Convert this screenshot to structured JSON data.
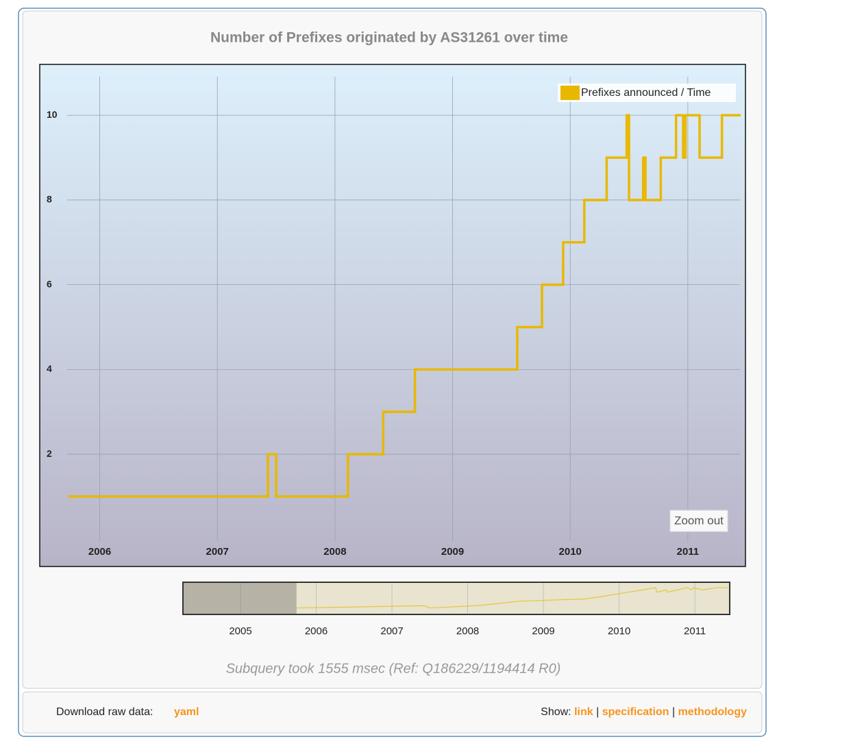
{
  "chart_data": {
    "type": "line",
    "step": "post",
    "title": "Number of Prefixes originated by AS31261 over time",
    "series": [
      {
        "name": "Prefixes announced / Time",
        "color": "#e8b800",
        "x": [
          2005.74,
          2007.43,
          2007.5,
          2008.11,
          2008.41,
          2008.68,
          2009.55,
          2009.76,
          2009.94,
          2010.12,
          2010.31,
          2010.48,
          2010.5,
          2010.62,
          2010.64,
          2010.77,
          2010.9,
          2010.96,
          2010.98,
          2011.1,
          2011.29,
          2011.44
        ],
        "values": [
          1,
          2,
          1,
          2,
          3,
          4,
          5,
          6,
          7,
          8,
          9,
          10,
          8,
          9,
          8,
          9,
          10,
          9,
          10,
          9,
          10,
          10
        ]
      }
    ],
    "xlim": [
      2005.49,
      2011.49
    ],
    "xticks": [
      2006,
      2007,
      2008,
      2009,
      2010,
      2011
    ],
    "ylim": [
      -0.65,
      11.2
    ],
    "yticks": [
      2,
      4,
      6,
      8,
      10
    ],
    "grid": true,
    "legend": "top-right"
  },
  "navigator": {
    "xlim": [
      2004.24,
      2011.46
    ],
    "xticks": [
      2005,
      2006,
      2007,
      2008,
      2009,
      2010,
      2011
    ]
  },
  "zoom_button": "Zoom out",
  "subquery_note": "Subquery took 1555 msec (Ref: Q186229/1194414 R0)",
  "footer": {
    "download_label": "Download raw data:",
    "download_link": "yaml",
    "show_label": "Show:",
    "links": [
      "link",
      "specification",
      "methodology"
    ],
    "separator": "|"
  }
}
